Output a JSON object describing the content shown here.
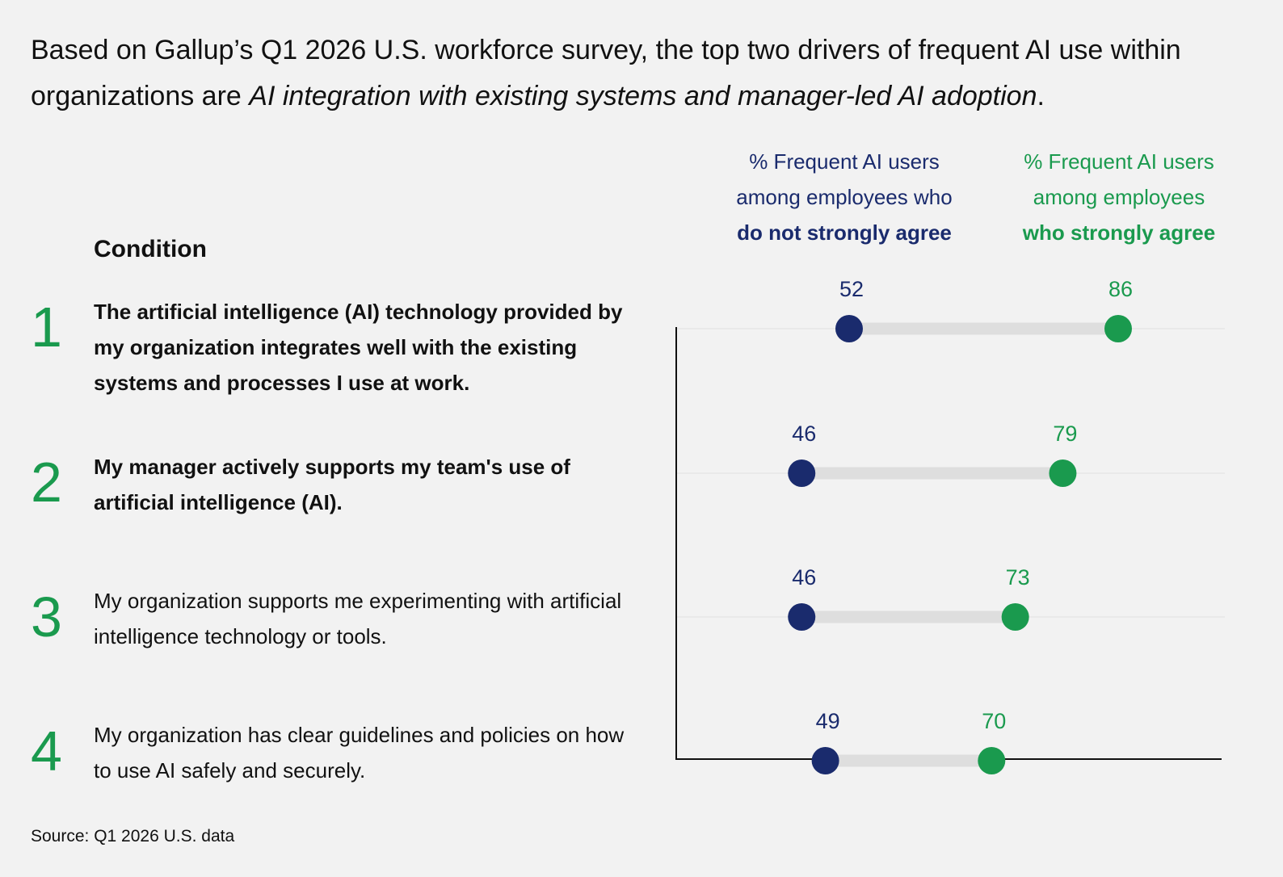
{
  "headline": {
    "lead": "Based on Gallup’s Q1 2026 U.S. workforce survey, the top two drivers of frequent AI use within organizations are ",
    "emphasis": "AI integration with existing systems and manager-led AI adoption",
    "tail": "."
  },
  "columns": {
    "not_strongly_agree": {
      "line1": "% Frequent AI users",
      "line2": "among employees who",
      "line3": "do not strongly agree"
    },
    "strongly_agree": {
      "line1": "% Frequent AI users",
      "line2": "among employees",
      "line3": "who strongly agree"
    }
  },
  "condition_label": "Condition",
  "source": "Source: Q1 2026 U.S. data",
  "colors": {
    "not_strongly_agree": "#1a2b6d",
    "strongly_agree": "#1a9a4e",
    "connector": "#dedede",
    "axis": "#111111"
  },
  "chart_data": {
    "type": "dumbbell",
    "categories": [
      "The artificial intelligence (AI) technology provided by my organization integrates well with the existing systems and processes I use at work.",
      "My manager actively supports my team's use of artificial intelligence (AI).",
      "My organization supports me experimenting with artificial intelligence technology or tools.",
      "My organization has clear guidelines and policies on how to use AI safely and securely."
    ],
    "numbers": [
      "1",
      "2",
      "3",
      "4"
    ],
    "bold": [
      true,
      true,
      false,
      false
    ],
    "series": [
      {
        "values": [
          52,
          46,
          46,
          49
        ]
      },
      {
        "values": [
          86,
          79,
          73,
          70
        ]
      }
    ]
  }
}
